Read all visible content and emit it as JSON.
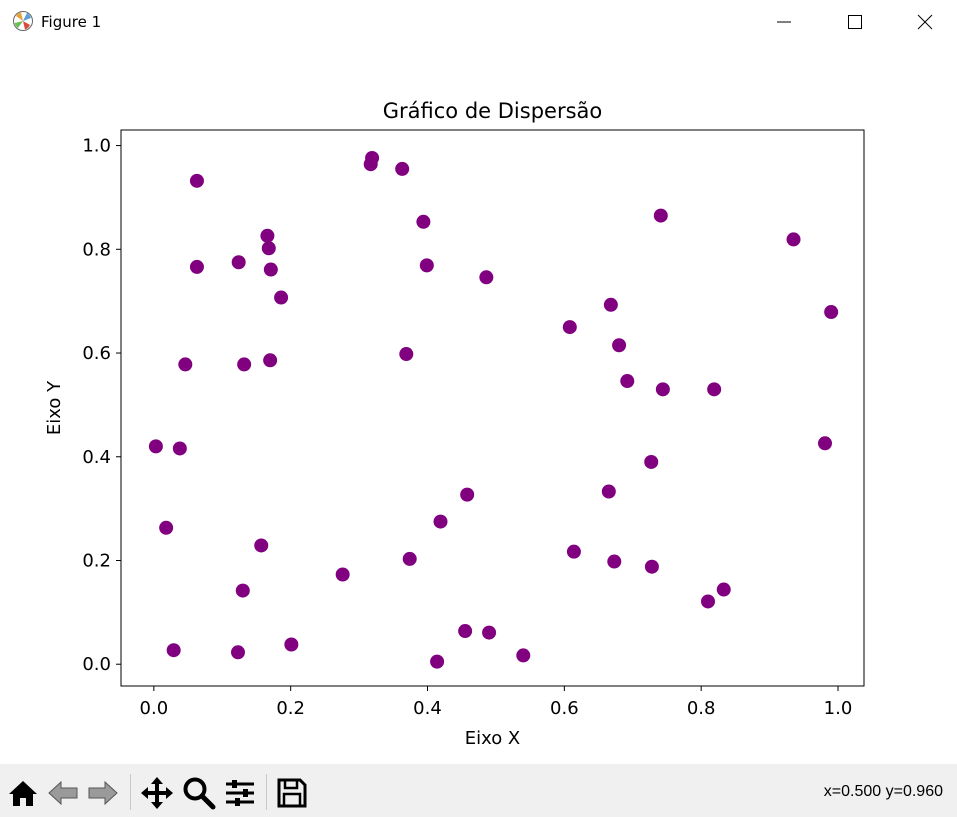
{
  "window": {
    "title": "Figure 1",
    "icon": "matplotlib-logo-icon",
    "controls": [
      "minimize-icon",
      "maximize-icon",
      "close-icon"
    ]
  },
  "toolbar": {
    "buttons": [
      "home-icon",
      "back-arrow-icon",
      "forward-arrow-icon",
      "pan-icon",
      "zoom-icon",
      "configure-subplots-icon",
      "save-icon"
    ],
    "coords_text": "x=0.500 y=0.960"
  },
  "chart_data": {
    "type": "scatter",
    "title": "Gráfico de Dispersão",
    "xlabel": "Eixo X",
    "ylabel": "Eixo Y",
    "xlim": [
      -0.048,
      1.038
    ],
    "ylim": [
      -0.042,
      1.03
    ],
    "xticks": [
      "0.0",
      "0.2",
      "0.4",
      "0.6",
      "0.8",
      "1.0"
    ],
    "yticks": [
      "0.0",
      "0.2",
      "0.4",
      "0.6",
      "0.8",
      "1.0"
    ],
    "marker_color": "#800080",
    "grid": false,
    "points": [
      [
        0.063,
        0.932
      ],
      [
        0.063,
        0.766
      ],
      [
        0.124,
        0.775
      ],
      [
        0.166,
        0.826
      ],
      [
        0.168,
        0.802
      ],
      [
        0.171,
        0.761
      ],
      [
        0.186,
        0.707
      ],
      [
        0.046,
        0.578
      ],
      [
        0.132,
        0.578
      ],
      [
        0.17,
        0.586
      ],
      [
        0.003,
        0.42
      ],
      [
        0.038,
        0.416
      ],
      [
        0.018,
        0.263
      ],
      [
        0.157,
        0.229
      ],
      [
        0.13,
        0.142
      ],
      [
        0.029,
        0.027
      ],
      [
        0.123,
        0.023
      ],
      [
        0.201,
        0.038
      ],
      [
        0.276,
        0.173
      ],
      [
        0.317,
        0.964
      ],
      [
        0.319,
        0.976
      ],
      [
        0.363,
        0.955
      ],
      [
        0.394,
        0.853
      ],
      [
        0.399,
        0.769
      ],
      [
        0.369,
        0.598
      ],
      [
        0.486,
        0.746
      ],
      [
        0.458,
        0.327
      ],
      [
        0.419,
        0.275
      ],
      [
        0.374,
        0.203
      ],
      [
        0.455,
        0.064
      ],
      [
        0.49,
        0.061
      ],
      [
        0.414,
        0.005
      ],
      [
        0.54,
        0.017
      ],
      [
        0.608,
        0.65
      ],
      [
        0.668,
        0.693
      ],
      [
        0.68,
        0.615
      ],
      [
        0.692,
        0.546
      ],
      [
        0.744,
        0.53
      ],
      [
        0.741,
        0.865
      ],
      [
        0.727,
        0.39
      ],
      [
        0.665,
        0.333
      ],
      [
        0.614,
        0.217
      ],
      [
        0.673,
        0.198
      ],
      [
        0.728,
        0.188
      ],
      [
        0.819,
        0.53
      ],
      [
        0.81,
        0.121
      ],
      [
        0.833,
        0.144
      ],
      [
        0.935,
        0.819
      ],
      [
        0.99,
        0.679
      ],
      [
        0.981,
        0.426
      ]
    ]
  }
}
